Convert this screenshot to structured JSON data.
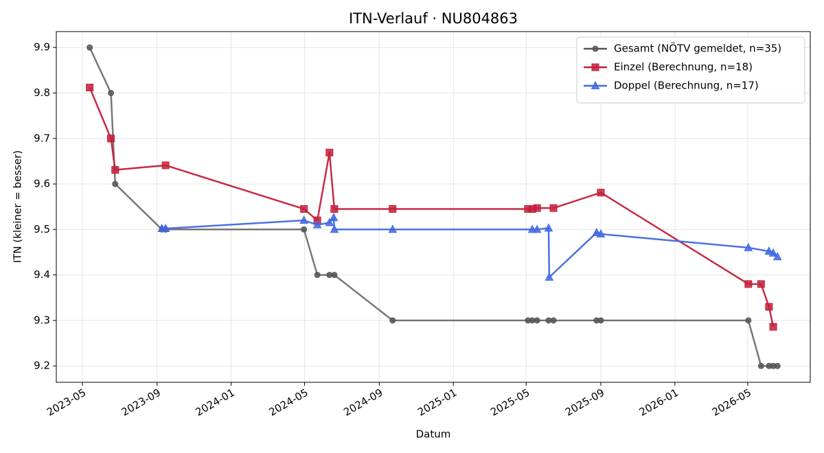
{
  "chart_data": {
    "type": "line",
    "title": "ITN-Verlauf · NU804863",
    "x_label": "Datum",
    "y_label": "ITN  (kleiner = besser)",
    "x_unit": "days since 1970-01-01",
    "xlim": [
      19435,
      20677
    ],
    "ylim": [
      9.164,
      9.935
    ],
    "xticks": [
      {
        "value": 19478,
        "label": "2023-05"
      },
      {
        "value": 19601,
        "label": "2023-09"
      },
      {
        "value": 19723,
        "label": "2024-01"
      },
      {
        "value": 19844,
        "label": "2024-05"
      },
      {
        "value": 19967,
        "label": "2024-09"
      },
      {
        "value": 20089,
        "label": "2025-01"
      },
      {
        "value": 20209,
        "label": "2025-05"
      },
      {
        "value": 20332,
        "label": "2025-09"
      },
      {
        "value": 20454,
        "label": "2026-01"
      },
      {
        "value": 20574,
        "label": "2026-05"
      }
    ],
    "yticks": [
      9.2,
      9.3,
      9.4,
      9.5,
      9.6,
      9.7,
      9.8,
      9.9
    ],
    "grid": true,
    "legend": "upper-right",
    "series": [
      {
        "name": "Gesamt (NÖTV gemeldet, n=35)",
        "color": "#555555",
        "marker": "circle",
        "x": [
          19490,
          19525,
          19532,
          19609,
          19615,
          19843,
          19865,
          19885,
          19893,
          19989,
          20212,
          20219,
          20227,
          20246,
          20254,
          20325,
          20332,
          20575,
          20596,
          20609,
          20616,
          20623
        ],
        "values": [
          9.9,
          9.8,
          9.6,
          9.5,
          9.5,
          9.5,
          9.4,
          9.4,
          9.4,
          9.3,
          9.3,
          9.3,
          9.3,
          9.3,
          9.3,
          9.3,
          9.3,
          9.3,
          9.2,
          9.2,
          9.2,
          9.2
        ]
      },
      {
        "name": "Einzel (Berechnung, n=18)",
        "color": "#c41e3a",
        "marker": "square",
        "x": [
          19490,
          19525,
          19532,
          19615,
          19843,
          19865,
          19885,
          19893,
          19989,
          20212,
          20219,
          20227,
          20254,
          20332,
          20575,
          20596,
          20609,
          20616
        ],
        "values": [
          9.812,
          9.7,
          9.631,
          9.641,
          9.545,
          9.52,
          9.669,
          9.545,
          9.545,
          9.545,
          9.545,
          9.547,
          9.547,
          9.581,
          9.38,
          9.38,
          9.33,
          9.286
        ]
      },
      {
        "name": "Doppel (Berechnung, n=17)",
        "color": "#4169e1",
        "marker": "triangle",
        "x": [
          19609,
          19615,
          19843,
          19865,
          19885,
          19892,
          19893,
          19989,
          20219,
          20227,
          20246,
          20247,
          20325,
          20332,
          20575,
          20609,
          20616,
          20623
        ],
        "values": [
          9.502,
          9.502,
          9.52,
          9.51,
          9.515,
          9.526,
          9.5,
          9.5,
          9.5,
          9.5,
          9.503,
          9.395,
          9.493,
          9.49,
          9.46,
          9.452,
          9.448,
          9.44
        ]
      }
    ]
  }
}
